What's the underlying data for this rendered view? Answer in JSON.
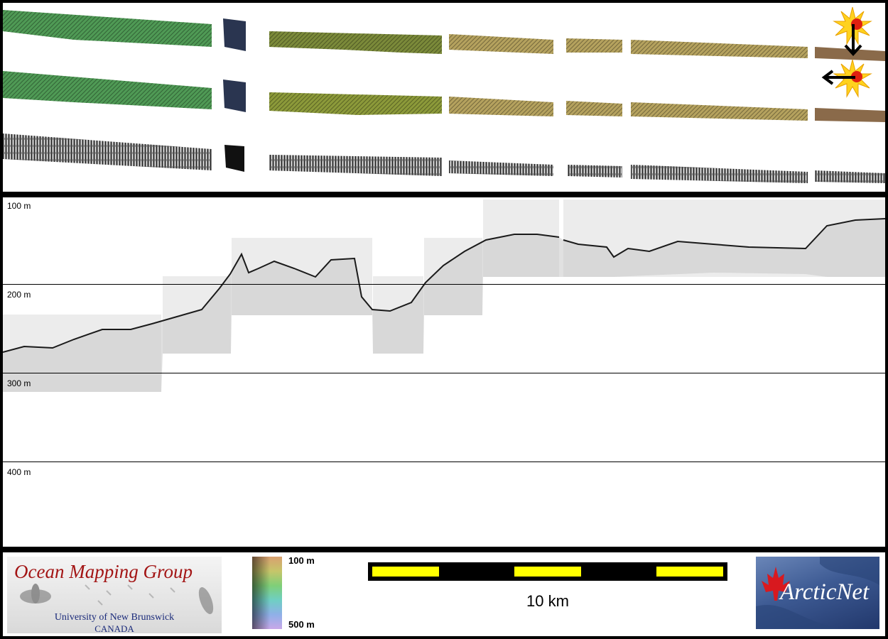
{
  "profile": {
    "depth_labels": [
      "100 m",
      "200 m",
      "300 m",
      "400 m"
    ]
  },
  "footer": {
    "omg_logo": {
      "title": "Ocean Mapping Group",
      "university": "University of New Brunswick",
      "country": "CANADA"
    },
    "colorbar": {
      "top_label": "100 m",
      "bottom_label": "500 m"
    },
    "scale_bar": {
      "label": "10 km"
    },
    "arcticnet_logo": {
      "text": "ArcticNet"
    }
  },
  "icons": [
    "sun-icon",
    "arrow-down-icon",
    "arrow-left-icon",
    "maple-leaf-icon",
    "sidescan-sonar-icon"
  ],
  "colors": {
    "background": "#000000",
    "panel": "#ffffff",
    "scale_yellow": "#ffff00",
    "omg_red": "#a31515",
    "omg_blue": "#1a2a7a",
    "arcticnet_blue": "#3d5a93",
    "sun_yellow": "#ffd21e",
    "sun_red": "#e02010"
  }
}
